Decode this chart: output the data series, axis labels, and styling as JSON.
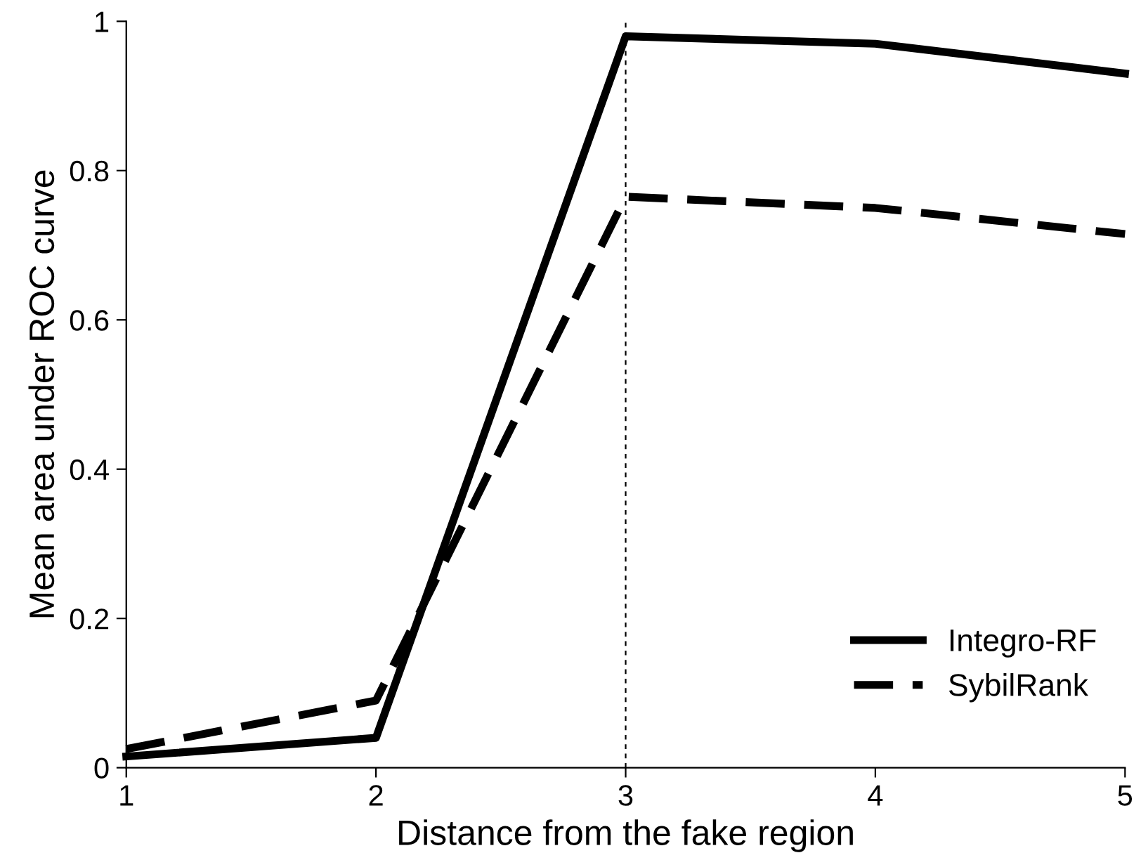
{
  "chart_data": {
    "type": "line",
    "xlabel": "Distance from the fake region",
    "ylabel": "Mean area under ROC curve",
    "x": [
      1,
      2,
      3,
      4,
      5
    ],
    "series": [
      {
        "name": "Integro-RF",
        "color": "#000000",
        "line_style": "solid",
        "values": [
          0.015,
          0.04,
          0.98,
          0.97,
          0.93
        ]
      },
      {
        "name": "SybilRank",
        "color": "#000000",
        "line_style": "dashed",
        "values": [
          0.025,
          0.09,
          0.765,
          0.75,
          0.715
        ]
      }
    ],
    "xlim": [
      1,
      5
    ],
    "ylim": [
      0,
      1
    ],
    "xticks": [
      1,
      2,
      3,
      4,
      5
    ],
    "yticks": [
      0,
      0.2,
      0.4,
      0.6,
      0.8,
      1
    ],
    "ref_lines": [
      {
        "axis": "x",
        "value": 3,
        "label": null,
        "color": "#000000",
        "line_style": "dashed"
      }
    ],
    "grid": false,
    "legend": "bottom right",
    "marker": "none"
  }
}
